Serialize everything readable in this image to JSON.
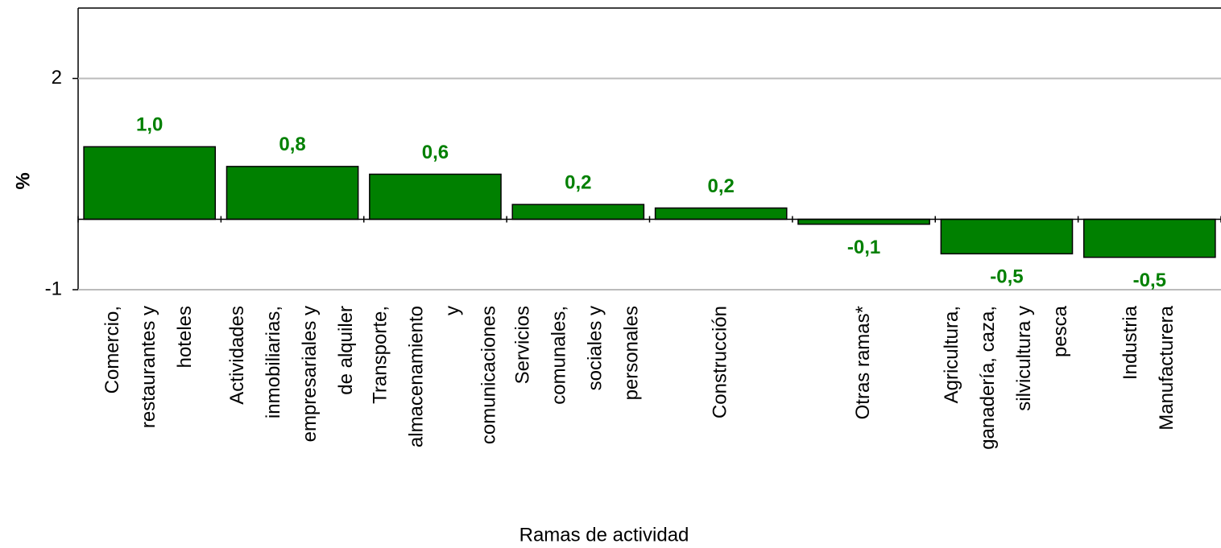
{
  "chart_data": {
    "type": "bar",
    "categories": [
      [
        "Comercio,",
        "restaurantes y",
        "hoteles"
      ],
      [
        "Actividades",
        "inmobiliarias,",
        "empresariales y",
        "de alquiler"
      ],
      [
        "Transporte,",
        "almacenamiento",
        "y",
        "comunicaciones"
      ],
      [
        "Servicios",
        "comunales,",
        "sociales y",
        "personales"
      ],
      [
        "Construcción"
      ],
      [
        "Otras ramas*"
      ],
      [
        "Agricultura,",
        "ganadería, caza,",
        "silvicultura y",
        "pesca"
      ],
      [
        "Industria",
        "Manufacturera"
      ]
    ],
    "values": [
      1.03,
      0.75,
      0.64,
      0.21,
      0.16,
      -0.07,
      -0.49,
      -0.54
    ],
    "value_labels": [
      "1,0",
      "0,8",
      "0,6",
      "0,2",
      "0,2",
      "-0,1",
      "-0,5",
      "-0,5"
    ],
    "color": "#008000",
    "label_color": "#008000",
    "ylim": [
      -1,
      3
    ],
    "yticks": [
      -1,
      2
    ],
    "grid": true,
    "y_label": "%",
    "x_label": "Ramas de actividad"
  }
}
